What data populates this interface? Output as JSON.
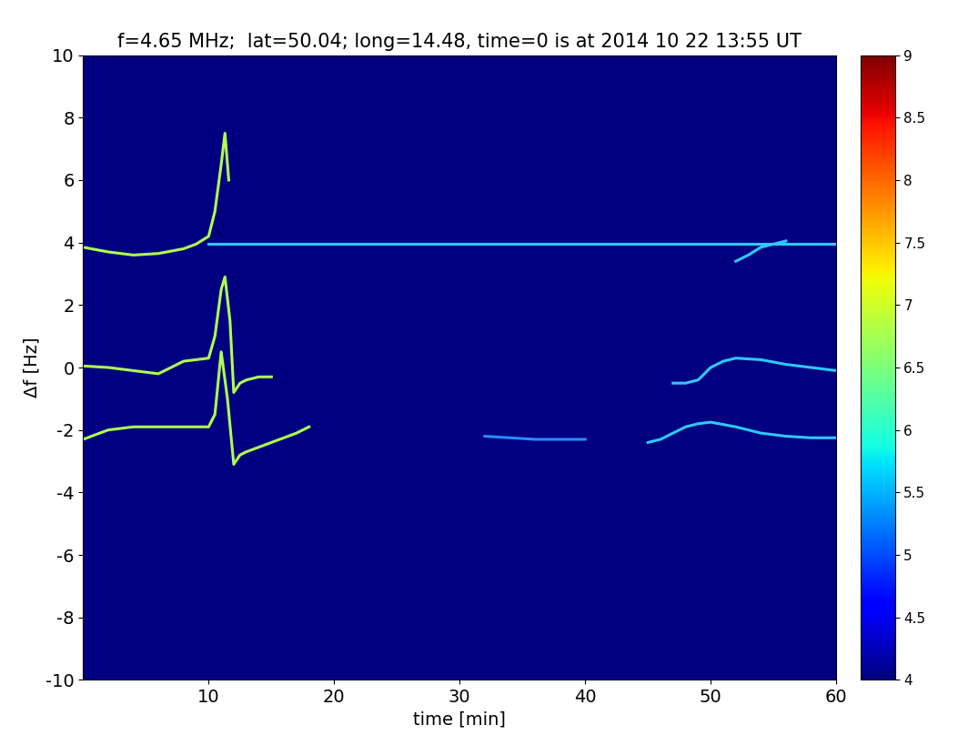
{
  "chart_data": {
    "type": "line",
    "title": "f=4.65 MHz;  lat=50.04; long=14.48, time=0 is at 2014 10 22 13:55 UT",
    "x_label": "time [min]",
    "y_label": "Δf [Hz]",
    "xlim": [
      0,
      60
    ],
    "xticks": [
      10,
      20,
      30,
      40,
      50,
      60
    ],
    "ylim": [
      -10,
      10
    ],
    "yticks": [
      -10,
      -8,
      -6,
      -4,
      -2,
      0,
      2,
      4,
      6,
      8,
      10
    ],
    "colorbar_lim": [
      4,
      9
    ],
    "colorbar_ticks": [
      4,
      4.5,
      5,
      5.5,
      6,
      6.5,
      7,
      7.5,
      8,
      8.5,
      9
    ],
    "grid": false,
    "series": [
      {
        "color": "#b0ff50",
        "x": [
          0,
          2,
          4,
          6,
          8,
          9,
          10,
          10.5,
          11,
          11.3,
          11.6
        ],
        "values": [
          3.85,
          3.7,
          3.6,
          3.65,
          3.8,
          3.95,
          4.2,
          5.0,
          6.5,
          7.5,
          6.0
        ]
      },
      {
        "color": "#30c8ff",
        "x": [
          10,
          20,
          30,
          40,
          50,
          60
        ],
        "values": [
          3.95,
          3.95,
          3.95,
          3.95,
          3.95,
          3.95
        ]
      },
      {
        "color": "#b0ff50",
        "x": [
          0,
          2,
          4,
          6,
          8,
          10,
          10.5,
          11,
          11.3,
          11.7,
          12,
          12.5,
          13,
          14,
          15
        ],
        "values": [
          0.05,
          0.0,
          -0.1,
          -0.2,
          0.2,
          0.3,
          1.0,
          2.5,
          2.9,
          1.5,
          -0.8,
          -0.5,
          -0.4,
          -0.3,
          -0.3
        ]
      },
      {
        "color": "#b0ff50",
        "x": [
          0,
          2,
          4,
          6,
          8,
          10,
          10.5,
          11,
          11.5,
          12,
          12.5,
          13,
          15,
          17,
          18
        ],
        "values": [
          -2.3,
          -2.0,
          -1.9,
          -1.9,
          -1.9,
          -1.9,
          -1.5,
          0.5,
          -1.0,
          -3.1,
          -2.8,
          -2.7,
          -2.4,
          -2.1,
          -1.9
        ]
      },
      {
        "color": "#2a8cff",
        "x": [
          32,
          36,
          40
        ],
        "values": [
          -2.2,
          -2.3,
          -2.3
        ]
      },
      {
        "color": "#30c8ff",
        "x": [
          45,
          46,
          47,
          48,
          49,
          50,
          52,
          54,
          56,
          58,
          60
        ],
        "values": [
          -2.4,
          -2.3,
          -2.1,
          -1.9,
          -1.8,
          -1.75,
          -1.9,
          -2.1,
          -2.2,
          -2.25,
          -2.25
        ]
      },
      {
        "color": "#30c8ff",
        "x": [
          47,
          48,
          49,
          50,
          51,
          52,
          54,
          56,
          58,
          60
        ],
        "values": [
          -0.5,
          -0.5,
          -0.4,
          0.0,
          0.2,
          0.3,
          0.25,
          0.1,
          0.0,
          -0.1
        ]
      },
      {
        "color": "#30c8ff",
        "x": [
          52,
          53,
          54,
          55,
          56
        ],
        "values": [
          3.4,
          3.6,
          3.85,
          3.95,
          4.05
        ]
      }
    ]
  }
}
